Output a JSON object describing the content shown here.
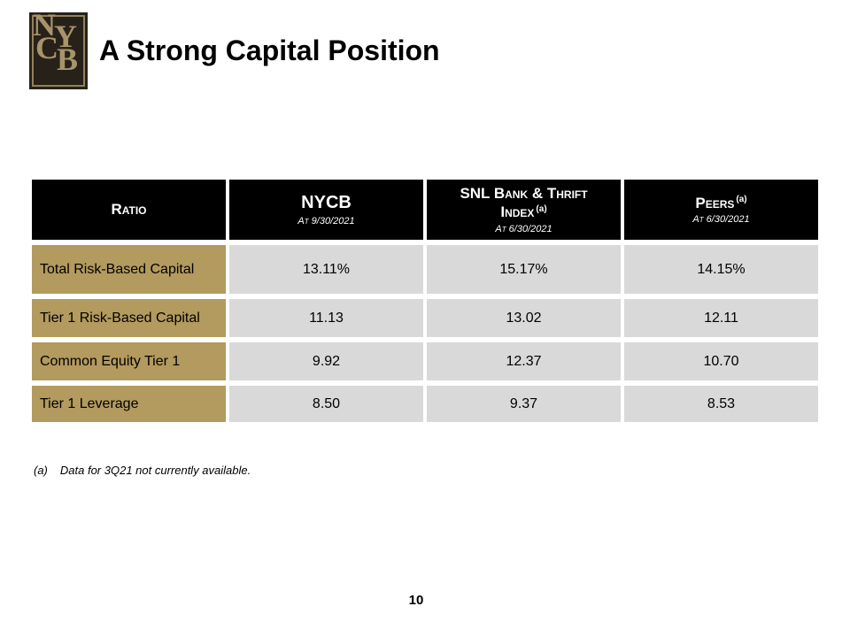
{
  "slide": {
    "title": "A Strong Capital Position",
    "page_number": "10"
  },
  "logo": {
    "letters": [
      "N",
      "Y",
      "C",
      "B"
    ],
    "colors": {
      "background": "#27211a",
      "gold": "#a8946a"
    }
  },
  "table": {
    "header": [
      {
        "label": "Ratio",
        "sup": "",
        "sub": ""
      },
      {
        "label": "NYCB",
        "sup": "",
        "sub": "At 9/30/2021"
      },
      {
        "label": "SNL Bank & Thrift\nIndex",
        "sup": "(a)",
        "sub": "At 6/30/2021"
      },
      {
        "label": "Peers",
        "sup": "(a)",
        "sub": "At 6/30/2021"
      }
    ],
    "rows": [
      {
        "label": "Total Risk-Based Capital",
        "values": [
          "13.11%",
          "15.17%",
          "14.15%"
        ]
      },
      {
        "label": "Tier 1 Risk-Based Capital",
        "values": [
          "11.13",
          "13.02",
          "12.11"
        ]
      },
      {
        "label": "Common Equity Tier 1",
        "values": [
          "9.92",
          "12.37",
          "10.70"
        ]
      },
      {
        "label": "Tier 1 Leverage",
        "values": [
          "8.50",
          "9.37",
          "8.53"
        ]
      }
    ],
    "colors": {
      "header_bg": "#000000",
      "header_text": "#ffffff",
      "label_bg": "#b39a5e",
      "value_bg": "#d9d9d9"
    }
  },
  "footnote": {
    "marker": "(a)",
    "text": "Data for 3Q21 not currently available."
  }
}
